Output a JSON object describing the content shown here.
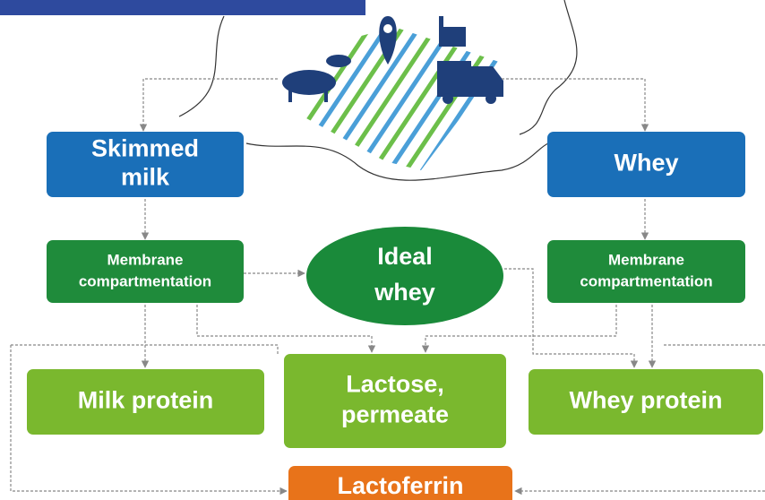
{
  "nodes": [
    {
      "id": "skimmed-milk",
      "lines": [
        "Skimmed",
        "milk"
      ]
    },
    {
      "id": "whey",
      "lines": [
        "Whey"
      ]
    },
    {
      "id": "membrane-left",
      "lines": [
        "Membrane",
        "compartmentation"
      ]
    },
    {
      "id": "ideal-whey",
      "lines": [
        "Ideal",
        "whey"
      ]
    },
    {
      "id": "membrane-right",
      "lines": [
        "Membrane",
        "compartmentation"
      ]
    },
    {
      "id": "milk-protein",
      "lines": [
        "Milk protein"
      ]
    },
    {
      "id": "lactose-permeate",
      "lines": [
        "Lactose,",
        "permeate"
      ]
    },
    {
      "id": "whey-protein",
      "lines": [
        "Whey protein"
      ]
    },
    {
      "id": "lactoferrin",
      "lines": [
        "Lactoferrin"
      ]
    }
  ]
}
